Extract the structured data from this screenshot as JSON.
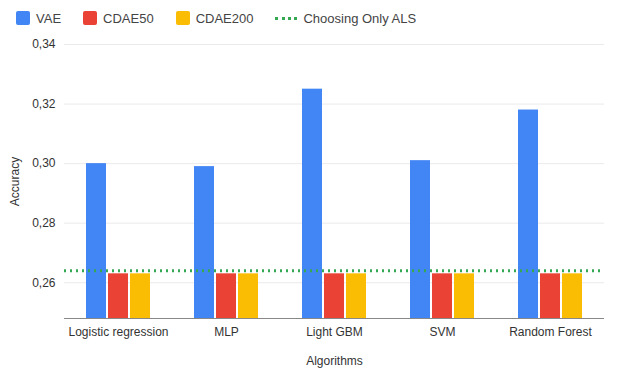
{
  "chart_data": {
    "type": "bar",
    "x_label": "Algorithms",
    "y_label": "Accuracy",
    "categories": [
      "Logistic regression",
      "MLP",
      "Light GBM",
      "SVM",
      "Random Forest"
    ],
    "series": [
      {
        "name": "VAE",
        "color": "#4285f4",
        "values": [
          0.3,
          0.299,
          0.325,
          0.301,
          0.318
        ]
      },
      {
        "name": "CDAE50",
        "color": "#ea4335",
        "values": [
          0.263,
          0.263,
          0.263,
          0.263,
          0.263
        ]
      },
      {
        "name": "CDAE200",
        "color": "#fbbc04",
        "values": [
          0.263,
          0.263,
          0.263,
          0.263,
          0.263
        ]
      },
      {
        "name": "Choosing Only ALS",
        "color": "#34a853",
        "type": "line",
        "line_style": "dotted",
        "values": [
          0.264,
          0.264,
          0.264,
          0.264,
          0.264
        ]
      }
    ],
    "ylim": [
      0.248,
      0.34
    ],
    "yticks": [
      {
        "value": 0.26,
        "label": "0,26"
      },
      {
        "value": 0.28,
        "label": "0,28"
      },
      {
        "value": 0.3,
        "label": "0,30"
      },
      {
        "value": 0.32,
        "label": "0,32"
      },
      {
        "value": 0.34,
        "label": "0,34"
      }
    ],
    "grid": true,
    "legend": "top"
  }
}
